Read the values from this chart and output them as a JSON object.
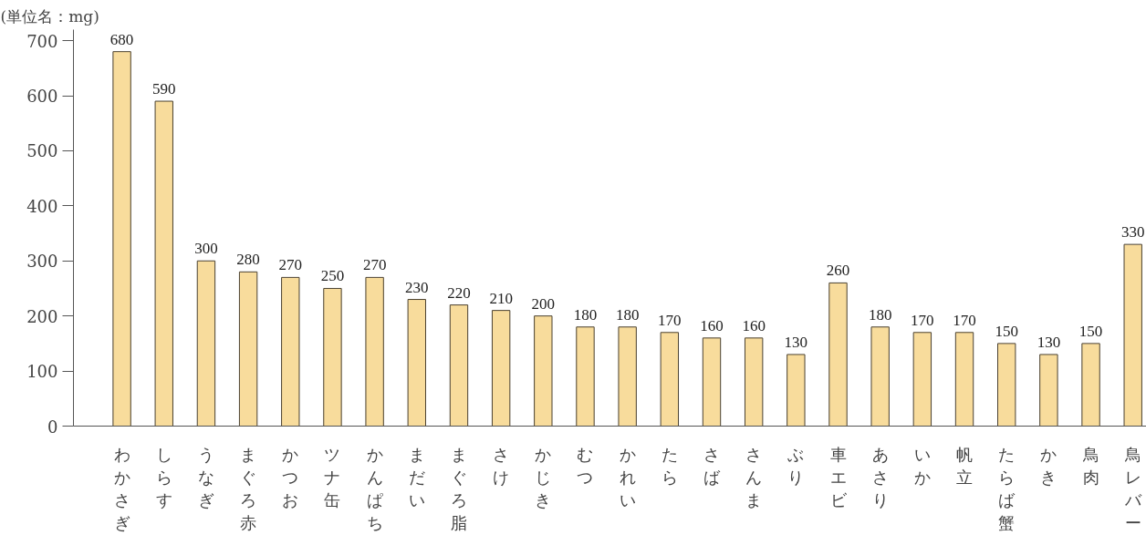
{
  "chart_data": {
    "type": "bar",
    "ylabel": "(単位名：mg)",
    "categories": [
      "わかさぎ",
      "しらす",
      "うなぎ",
      "まぐろ赤",
      "かつお",
      "ツナ缶",
      "かんぱち",
      "まだい",
      "まぐろ脂",
      "さけ",
      "かじき",
      "むつ",
      "かれい",
      "たら",
      "さば",
      "さんま",
      "ぶり",
      "車エビ",
      "あさり",
      "いか",
      "帆立",
      "たらば蟹",
      "かき",
      "鳥肉",
      "鳥レバー"
    ],
    "values": [
      680,
      590,
      300,
      280,
      270,
      250,
      270,
      230,
      220,
      210,
      200,
      180,
      180,
      170,
      160,
      160,
      130,
      260,
      180,
      170,
      170,
      150,
      130,
      150,
      330
    ],
    "color": "#f8dc9c",
    "ylim": [
      0,
      720
    ],
    "yticks": [
      0,
      100,
      200,
      300,
      400,
      500,
      600,
      700
    ],
    "data_labels": true
  }
}
